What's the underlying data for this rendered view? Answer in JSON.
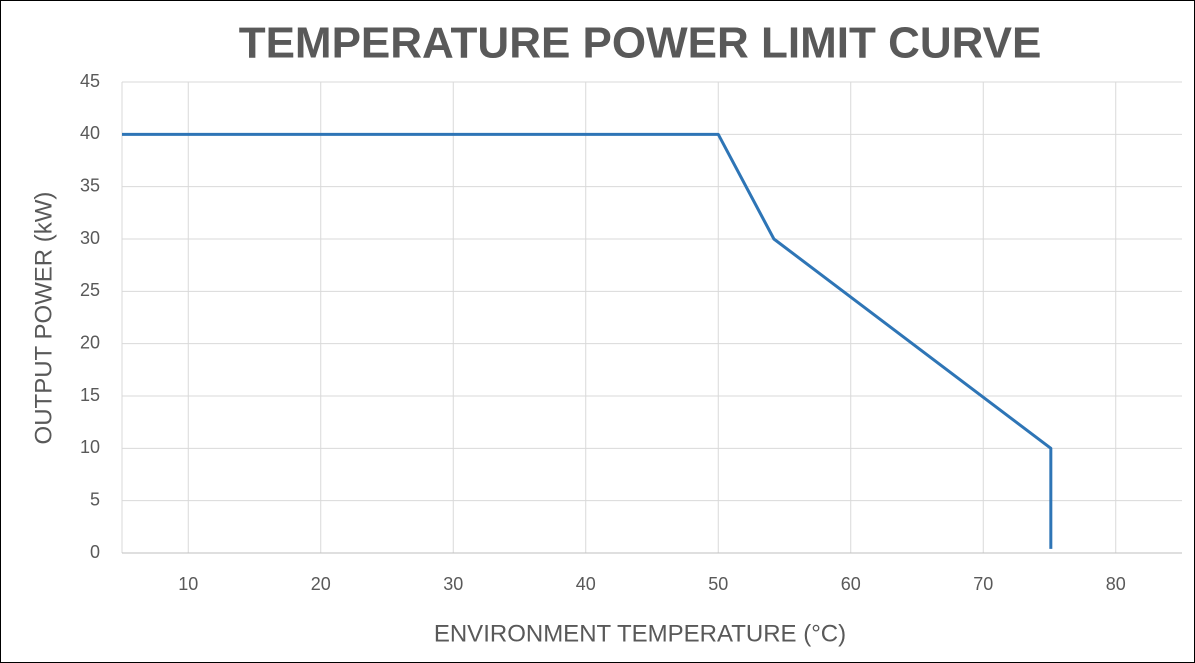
{
  "chart_data": {
    "type": "line",
    "title": "TEMPERATURE POWER LIMIT CURVE",
    "xlabel": "ENVIRONMENT TEMPERATURE (°C)",
    "ylabel": "OUTPUT POWER (kW)",
    "series": [
      {
        "color": "#2e75b6",
        "x": [
          5,
          50,
          54.2,
          75.1,
          75.1
        ],
        "values": [
          40,
          40,
          30,
          10,
          0.4
        ]
      }
    ],
    "xlim": [
      5,
      85
    ],
    "xticks": [
      10,
      20,
      30,
      40,
      50,
      60,
      70,
      80
    ],
    "ylim": [
      0,
      45
    ],
    "yticks": [
      0,
      5,
      10,
      15,
      20,
      25,
      30,
      35,
      40,
      45
    ],
    "grid": true
  }
}
